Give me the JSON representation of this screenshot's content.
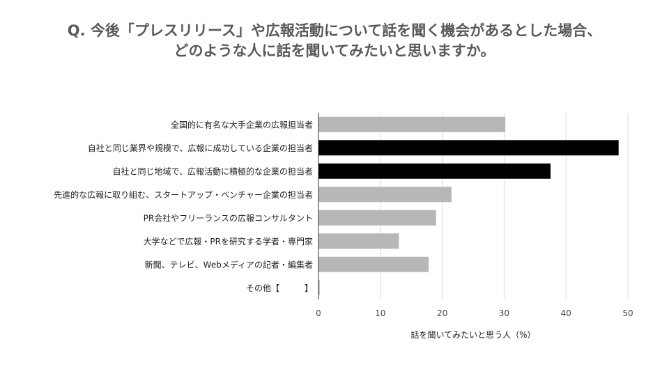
{
  "title_line1": "Q. 今後「プレスリリース」や広報活動について話を聞く機会があるとした場合、",
  "title_line2": "どのような人に話を聞いてみたいと思いますか。",
  "chart_data": {
    "type": "bar",
    "orientation": "horizontal",
    "categories": [
      "全国的に有名な大手企業の広報担当者",
      "自社と同じ業界や規模で、広報に成功している企業の担当者",
      "自社と同じ地域で、広報活動に積極的な企業の担当者",
      "先進的な広報に取り組む、スタートアップ・ベンチャー企業の担当者",
      "PR会社やフリーランスの広報コンサルタント",
      "大学などで広報・PRを研究する学者・専門家",
      "新聞、テレビ、Webメディアの記者・編集者",
      "その他【　　　】"
    ],
    "values": [
      30.2,
      48.5,
      37.5,
      21.5,
      19,
      13,
      17.8,
      0.2
    ],
    "bar_colors": [
      "#b7b7b7",
      "#000000",
      "#000000",
      "#b7b7b7",
      "#b7b7b7",
      "#b7b7b7",
      "#b7b7b7",
      "#b7b7b7"
    ],
    "xlabel": "話を聞いてみたいと思う人（%）",
    "xlim": [
      0,
      50
    ],
    "xticks": [
      0,
      10,
      20,
      30,
      40,
      50
    ],
    "grid": true
  }
}
